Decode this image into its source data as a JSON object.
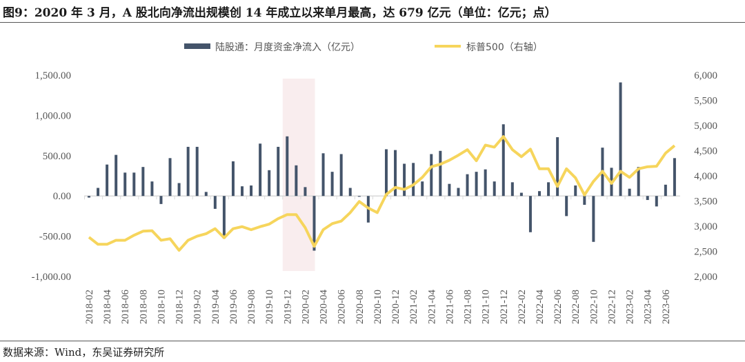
{
  "title": "图9：2020 年 3 月，A 股北向净流出规模创 14 年成立以来单月最高，达 679 亿元（单位：亿元；点）",
  "source": "数据来源：Wind，东吴证券研究所",
  "chart_data": {
    "type": "bar+line",
    "title": "图9：2020 年 3 月，A 股北向净流出规模创 14 年成立以来单月最高，达 679 亿元（单位：亿元；点）",
    "legend": [
      "陆股通：月度资金净流入（亿元）",
      "标普500（右轴）"
    ],
    "legend_position": "top-center",
    "colors": {
      "bar": "#44546A",
      "line": "#F6D55C",
      "highlight": "#F9EDEE"
    },
    "highlight_range": [
      "2019-12",
      "2020-03"
    ],
    "y_left": {
      "ticks": [
        "1,500.00",
        "1,000.00",
        "500.00",
        "0.00",
        "-500.00",
        "-1,000.00"
      ],
      "range": [
        -1000,
        1500
      ]
    },
    "y_right": {
      "ticks": [
        "6,000",
        "5,500",
        "5,000",
        "4,500",
        "4,000",
        "3,500",
        "3,000",
        "2,500",
        "2,000"
      ],
      "range": [
        2000,
        6000
      ]
    },
    "x_tick_labels": [
      "2018-02",
      "2018-04",
      "2018-06",
      "2018-08",
      "2018-10",
      "2018-12",
      "2019-02",
      "2019-04",
      "2019-06",
      "2019-08",
      "2019-10",
      "2019-12",
      "2020-02",
      "2020-04",
      "2020-06",
      "2020-08",
      "2020-10",
      "2020-12",
      "2021-02",
      "2021-04",
      "2021-06",
      "2021-08",
      "2021-10",
      "2021-12",
      "2022-02",
      "2022-04",
      "2022-06",
      "2022-08",
      "2022-10",
      "2022-12",
      "2023-02",
      "2023-04",
      "2023-06"
    ],
    "series": [
      {
        "name": "陆股通：月度资金净流入（亿元）",
        "axis": "left",
        "type": "bar",
        "values": [
          -20,
          100,
          390,
          510,
          290,
          290,
          360,
          180,
          -100,
          470,
          160,
          610,
          610,
          50,
          -160,
          -530,
          430,
          120,
          130,
          650,
          320,
          610,
          740,
          380,
          110,
          -679,
          530,
          300,
          520,
          100,
          -10,
          -330,
          0,
          580,
          570,
          400,
          410,
          180,
          520,
          560,
          150,
          100,
          270,
          300,
          330,
          180,
          890,
          170,
          40,
          -450,
          60,
          170,
          730,
          -250,
          130,
          -110,
          -570,
          600,
          350,
          1410,
          90,
          360,
          -50,
          -130,
          140,
          470
        ]
      },
      {
        "name": "标普500（右轴）",
        "axis": "right",
        "type": "line",
        "values": [
          2780,
          2640,
          2640,
          2720,
          2720,
          2820,
          2900,
          2910,
          2720,
          2750,
          2520,
          2720,
          2800,
          2850,
          2950,
          2770,
          2950,
          2990,
          2930,
          2990,
          3040,
          3150,
          3230,
          3230,
          2970,
          2600,
          2930,
          3050,
          3100,
          3270,
          3490,
          3360,
          3270,
          3630,
          3770,
          3730,
          3820,
          3970,
          4180,
          4230,
          4310,
          4410,
          4520,
          4300,
          4610,
          4570,
          4780,
          4520,
          4380,
          4530,
          4140,
          4140,
          3790,
          4140,
          3960,
          3620,
          3890,
          4090,
          3850,
          4090,
          3970,
          4140,
          4180,
          4190,
          4450,
          4600
        ]
      }
    ]
  }
}
